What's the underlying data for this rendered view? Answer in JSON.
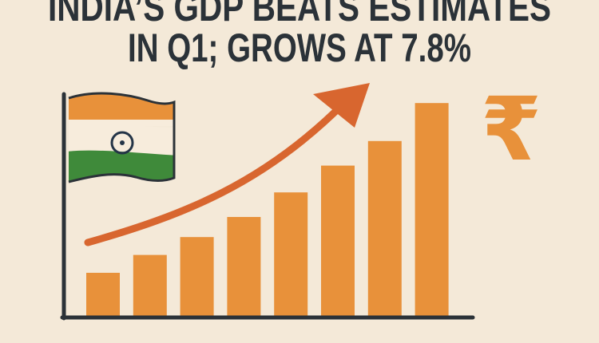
{
  "headline": {
    "line1": "INDIA’S GDP BEATS ESTIMATES",
    "line2": "IN Q1; GROWS AT 7.8%"
  },
  "currency_symbol": "₹",
  "icons": [
    "india-flag-icon",
    "rupee-icon",
    "trend-arrow-icon"
  ],
  "colors": {
    "background": "#f4e9d8",
    "text": "#2b3238",
    "bar": "#e8913a",
    "arrow": "#d8662f",
    "flag_saffron": "#e8913a",
    "flag_white": "#f7ecdc",
    "flag_green": "#3f8a3a",
    "chakra": "#243447"
  },
  "bar_levels": [
    20,
    28,
    36,
    45,
    56,
    68,
    79,
    96
  ]
}
